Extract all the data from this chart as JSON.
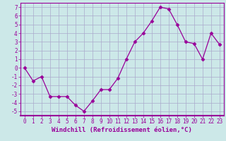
{
  "x": [
    0,
    1,
    2,
    3,
    4,
    5,
    6,
    7,
    8,
    9,
    10,
    11,
    12,
    13,
    14,
    15,
    16,
    17,
    18,
    19,
    20,
    21,
    22,
    23
  ],
  "y": [
    0.0,
    -1.5,
    -1.0,
    -3.3,
    -3.3,
    -3.3,
    -4.3,
    -5.0,
    -3.8,
    -2.5,
    -2.5,
    -1.2,
    1.0,
    3.0,
    4.0,
    5.4,
    7.0,
    6.8,
    5.0,
    3.0,
    2.8,
    1.0,
    4.0,
    2.7
  ],
  "line_color": "#990099",
  "marker": "D",
  "marker_size": 2.5,
  "bg_color": "#cce8e8",
  "grid_color": "#aaaacc",
  "xlabel": "Windchill (Refroidissement éolien,°C)",
  "xlim": [
    -0.5,
    23.5
  ],
  "ylim": [
    -5.5,
    7.5
  ],
  "xticks": [
    0,
    1,
    2,
    3,
    4,
    5,
    6,
    7,
    8,
    9,
    10,
    11,
    12,
    13,
    14,
    15,
    16,
    17,
    18,
    19,
    20,
    21,
    22,
    23
  ],
  "yticks": [
    -5,
    -4,
    -3,
    -2,
    -1,
    0,
    1,
    2,
    3,
    4,
    5,
    6,
    7
  ],
  "xlabel_fontsize": 6.5,
  "tick_fontsize": 5.5
}
